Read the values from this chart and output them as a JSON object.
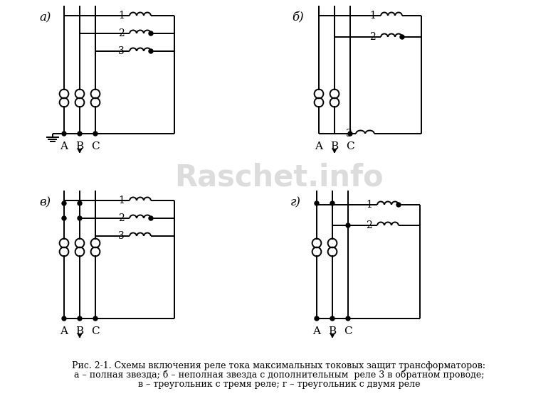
{
  "caption_line1": "Рис. 2-1. Схемы включения реле тока максимальных токовых защит трансформаторов:",
  "caption_line2": "а – полная звезда; б – неполная звезда с дополнительным  реле 3 в обратном проводе;",
  "caption_line3": "в – треугольник с тремя реле; г – треугольник с двумя реле",
  "background_color": "#ffffff",
  "line_color": "#000000",
  "watermark_text": "Raschet.info"
}
